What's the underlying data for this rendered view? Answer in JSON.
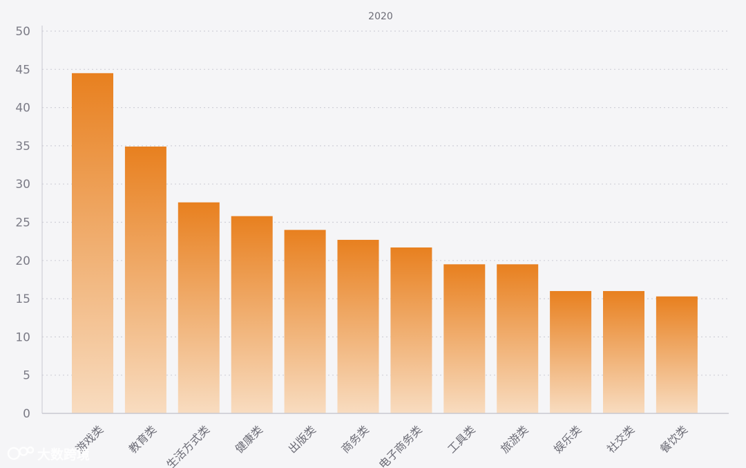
{
  "chart_data": {
    "type": "bar",
    "title": "2020",
    "categories": [
      "游戏类",
      "教育类",
      "生活方式类",
      "健康类",
      "出版类",
      "商务类",
      "电子商务类",
      "工具类",
      "旅游类",
      "娱乐类",
      "社交类",
      "餐饮类"
    ],
    "values": [
      44.5,
      34.9,
      27.6,
      25.8,
      24.0,
      22.7,
      21.7,
      19.5,
      19.5,
      16.0,
      16.0,
      15.3
    ],
    "ylim": [
      0,
      50
    ],
    "yticks": [
      0,
      5,
      10,
      15,
      20,
      25,
      30,
      35,
      40,
      45,
      50
    ],
    "xlabel": "",
    "ylabel": "",
    "grid": true,
    "colors": {
      "bar_top": "#e8801f",
      "bar_bottom": "#f8dcc0",
      "grid": "#d0d0d8",
      "axis": "#c8c8d0"
    }
  },
  "watermark": {
    "text": "大数跨境",
    "icon": "logo-icon"
  }
}
